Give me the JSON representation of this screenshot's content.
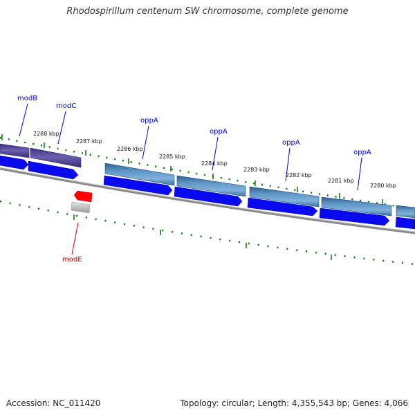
{
  "title": "Rhodospirillum centenum SW chromosome, complete genome",
  "footer": {
    "accession_label": "Accession:",
    "accession_value": "NC_011420",
    "topology_text": "Topology: circular; Length: 4,355,543 bp; Genes: 4,066"
  },
  "colors": {
    "forward_gene": "#0000ee",
    "operon_top": "#4a7fb0",
    "operon_mod": "#4b3f8f",
    "reverse_gene": "#ff0000",
    "backbone": "#777777",
    "tick": "#007700",
    "label_line_fwd": "#0000cc",
    "label_line_rev": "#cc0000"
  },
  "scale_labels": [
    "2288 kbp",
    "2287 kbp",
    "2286 kbp",
    "2285 kbp",
    "2284 kbp",
    "2283 kbp",
    "2282 kbp",
    "2281 kbp",
    "2280 kbp"
  ],
  "gene_labels": {
    "modB": "modB",
    "modC": "modC",
    "oppA_1": "oppA",
    "oppA_2": "oppA",
    "oppA_3": "oppA",
    "oppA_4": "oppA",
    "modE": "modE"
  }
}
